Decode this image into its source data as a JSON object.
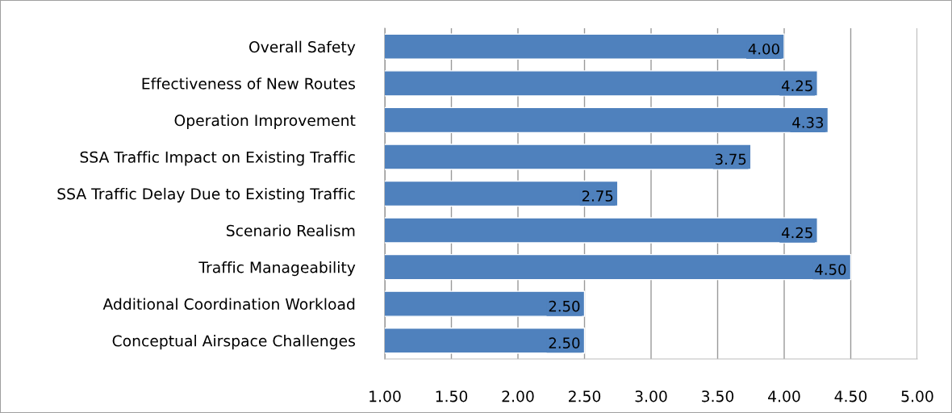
{
  "chart_data": {
    "type": "bar",
    "orientation": "horizontal",
    "categories": [
      "Overall Safety",
      "Effectiveness of New Routes",
      "Operation Improvement",
      "SSA Traffic Impact on Existing Traffic",
      "SSA Traffic Delay Due to Existing Traffic",
      "Scenario Realism",
      "Traffic Manageability",
      "Additional Coordination Workload",
      "Conceptual Airspace Challenges"
    ],
    "values": [
      4.0,
      4.25,
      4.33,
      3.75,
      2.75,
      4.25,
      4.5,
      2.5,
      2.5
    ],
    "value_labels": [
      "4.00",
      "4.25",
      "4.33",
      "3.75",
      "2.75",
      "4.25",
      "4.50",
      "2.50",
      "2.50"
    ],
    "color": "#4f81bd",
    "xlim": [
      1,
      5
    ],
    "xticks": [
      {
        "value": 1,
        "label": "1.00"
      },
      {
        "value": 1.5,
        "label": "1.50"
      },
      {
        "value": 2,
        "label": "2.00"
      },
      {
        "value": 2.5,
        "label": "2.50"
      },
      {
        "value": 3,
        "label": "3.00"
      },
      {
        "value": 3.5,
        "label": "3.50"
      },
      {
        "value": 4,
        "label": "4.00"
      },
      {
        "value": 4.5,
        "label": "4.50"
      },
      {
        "value": 5,
        "label": "5.00"
      }
    ],
    "grid": "x",
    "legend": false
  }
}
